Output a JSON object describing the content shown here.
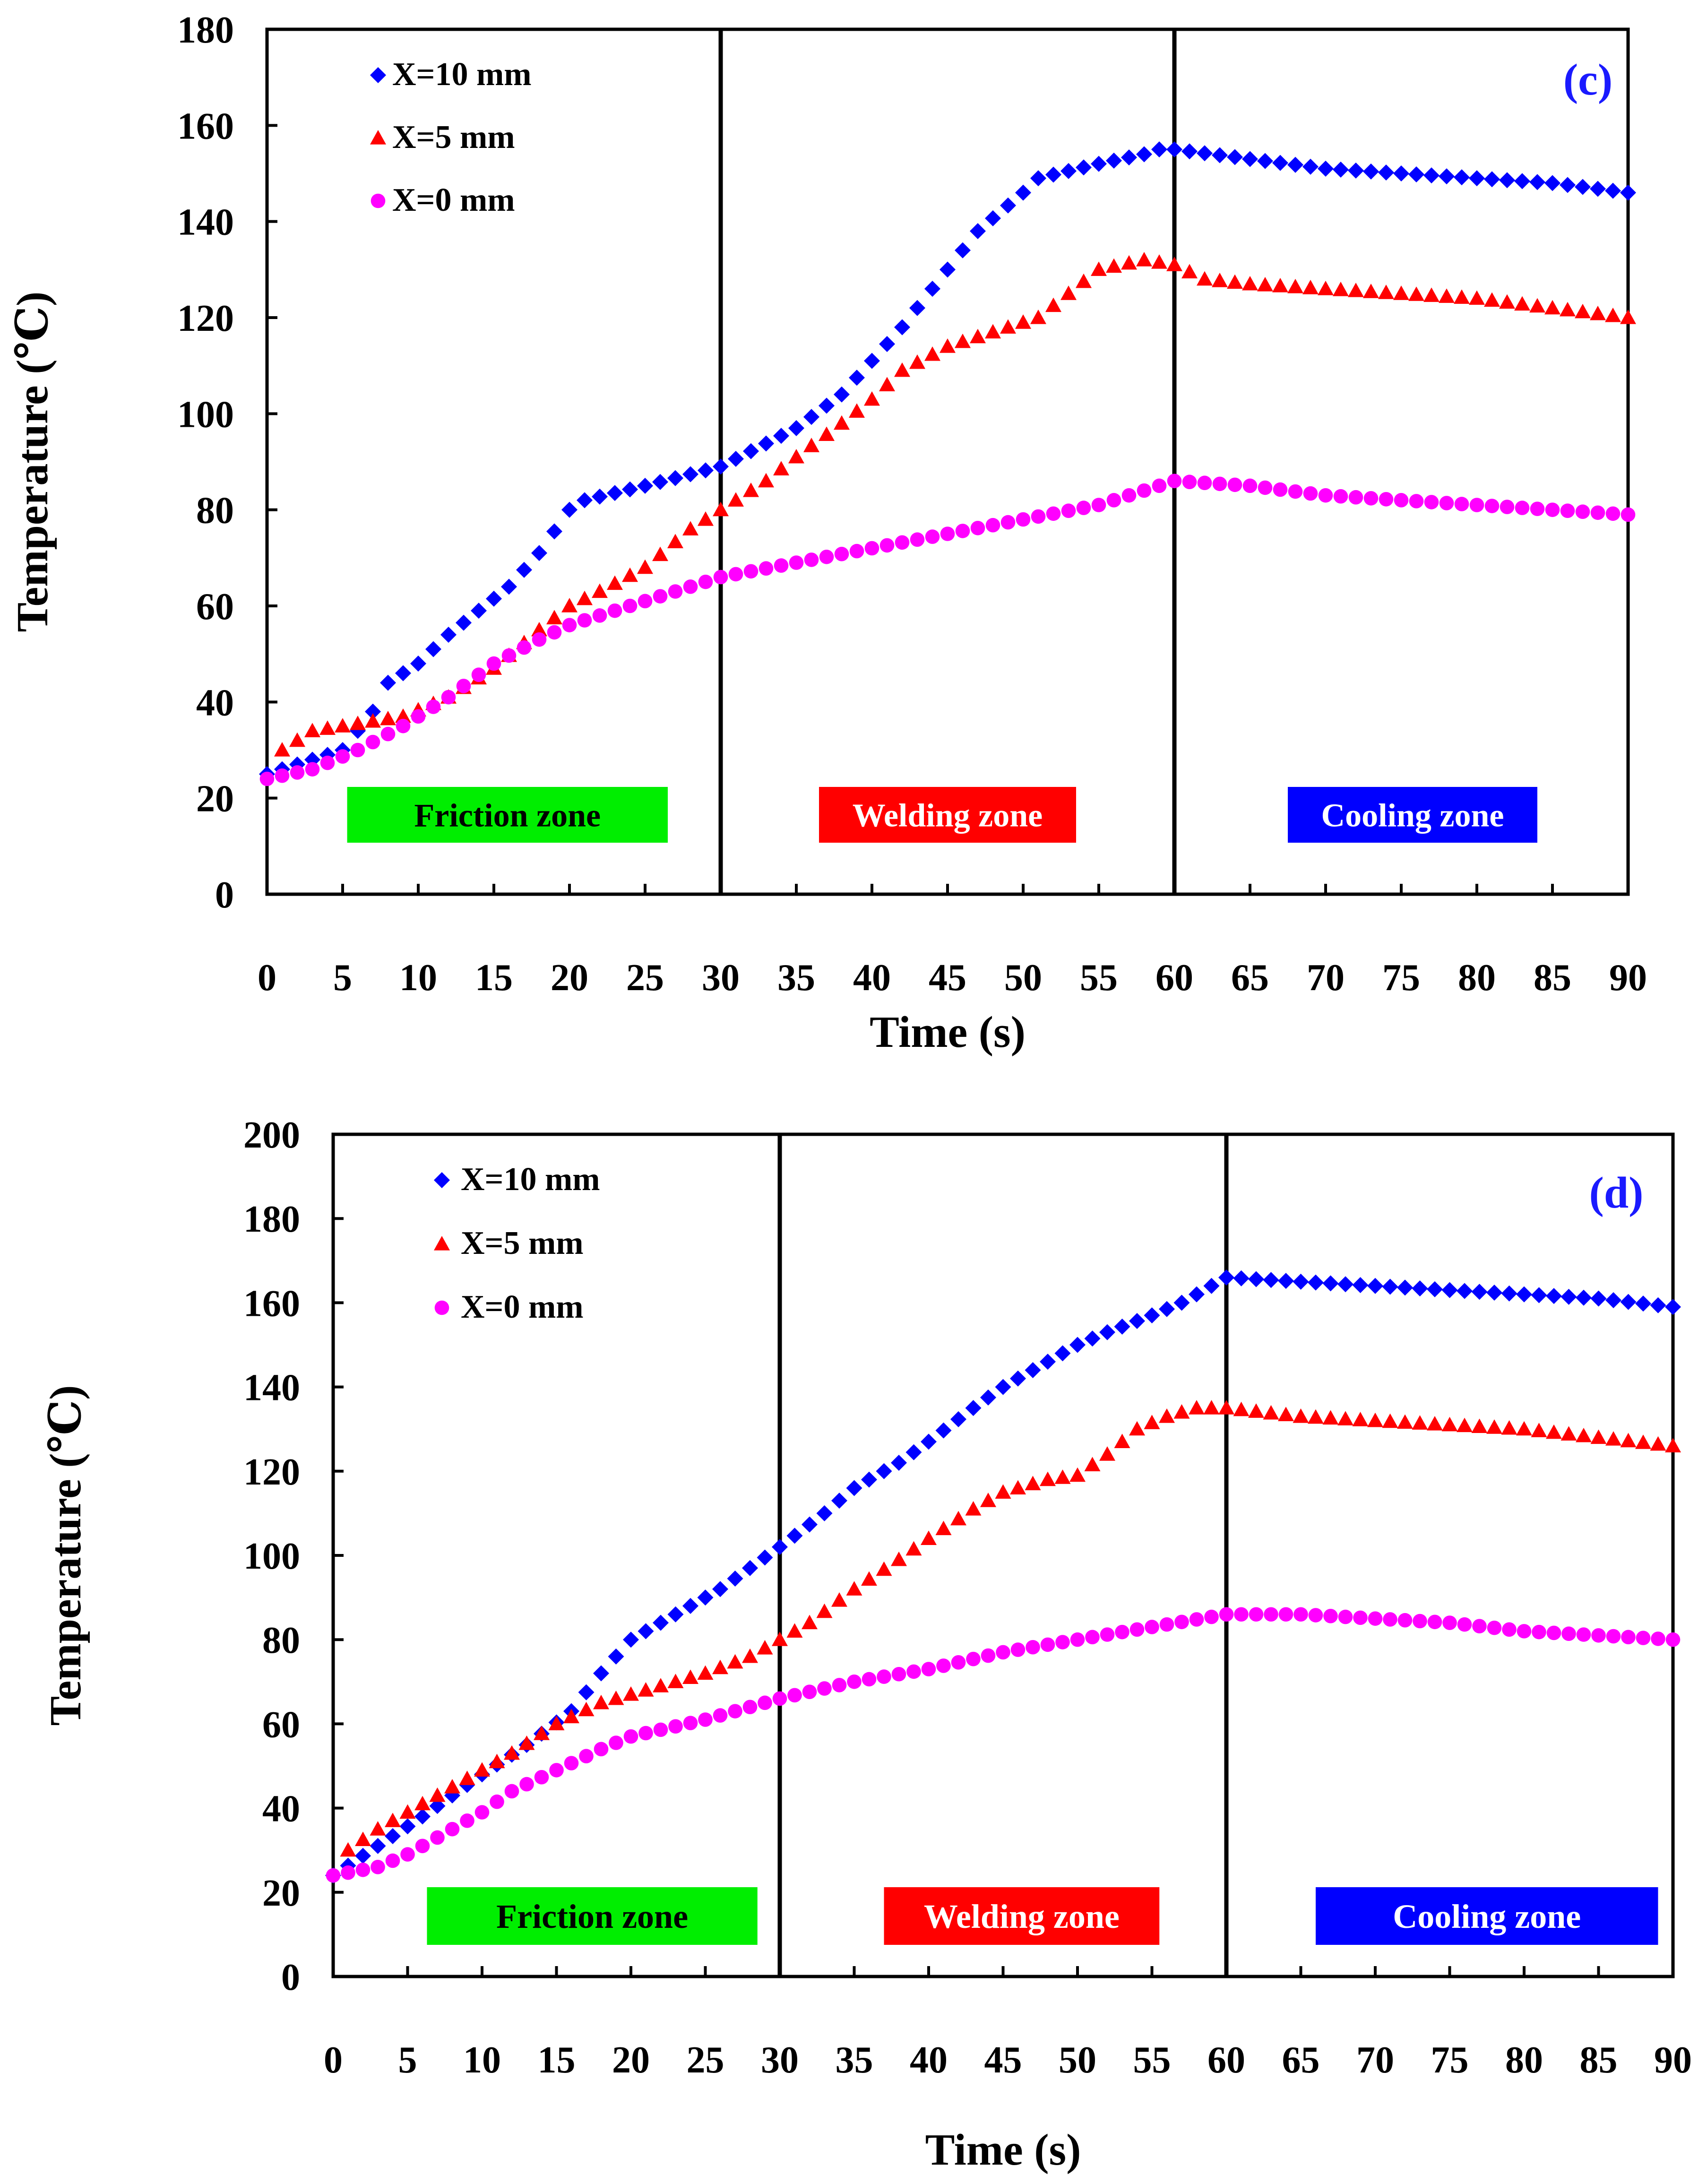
{
  "chart_data": [
    {
      "type": "scatter",
      "panel_label": "(c)",
      "xlabel": "Time (s)",
      "ylabel": "Temperature (℃)",
      "xlim": [
        0,
        90
      ],
      "ylim": [
        0,
        180
      ],
      "xticks": [
        0,
        5,
        10,
        15,
        20,
        25,
        30,
        35,
        40,
        45,
        50,
        55,
        60,
        65,
        70,
        75,
        80,
        85,
        90
      ],
      "yticks": [
        0,
        20,
        40,
        60,
        80,
        100,
        120,
        140,
        160,
        180
      ],
      "phase_boundaries": [
        30,
        60
      ],
      "zones": [
        {
          "label": "Friction zone",
          "color": "#00ee00",
          "text_color": "#000000",
          "x_from": 5.3,
          "x_to": 26.5
        },
        {
          "label": "Welding zone",
          "color": "#ff0000",
          "text_color": "#ffffff",
          "x_from": 36.5,
          "x_to": 53.5
        },
        {
          "label": "Cooling zone",
          "color": "#0000ff",
          "text_color": "#ffffff",
          "x_from": 67.5,
          "x_to": 84.0
        }
      ],
      "series": [
        {
          "name": "X=10 mm",
          "marker": "diamond",
          "color": "#0000ff",
          "points": [
            [
              0,
              25
            ],
            [
              5,
              30
            ],
            [
              7,
              38
            ],
            [
              8,
              44
            ],
            [
              10,
              48
            ],
            [
              12,
              54
            ],
            [
              14,
              59
            ],
            [
              16,
              64
            ],
            [
              18,
              71
            ],
            [
              20,
              80
            ],
            [
              21,
              82
            ],
            [
              25,
              85
            ],
            [
              30,
              89
            ],
            [
              35,
              97
            ],
            [
              38,
              104
            ],
            [
              40,
              111
            ],
            [
              42,
              118
            ],
            [
              45,
              130
            ],
            [
              47,
              138
            ],
            [
              50,
              146
            ],
            [
              51,
              149
            ],
            [
              55,
              152
            ],
            [
              58,
              154
            ],
            [
              59,
              155
            ],
            [
              60,
              155
            ],
            [
              65,
              153
            ],
            [
              70,
              151
            ],
            [
              75,
              150
            ],
            [
              80,
              149
            ],
            [
              85,
              148
            ],
            [
              90,
              146
            ]
          ]
        },
        {
          "name": "X=5 mm",
          "marker": "triangle",
          "color": "#ff0000",
          "points": [
            [
              1,
              30
            ],
            [
              3,
              34
            ],
            [
              5,
              35
            ],
            [
              9,
              37
            ],
            [
              12,
              41
            ],
            [
              15,
              47
            ],
            [
              18,
              55
            ],
            [
              20,
              60
            ],
            [
              22,
              63
            ],
            [
              25,
              68
            ],
            [
              28,
              76
            ],
            [
              30,
              80
            ],
            [
              33,
              86
            ],
            [
              35,
              91
            ],
            [
              38,
              98
            ],
            [
              40,
              103
            ],
            [
              42,
              109
            ],
            [
              45,
              114
            ],
            [
              48,
              117
            ],
            [
              51,
              120
            ],
            [
              53,
              125
            ],
            [
              55,
              130
            ],
            [
              58,
              132
            ],
            [
              60,
              131
            ],
            [
              62,
              128
            ],
            [
              65,
              127
            ],
            [
              70,
              126
            ],
            [
              75,
              125
            ],
            [
              80,
              124
            ],
            [
              85,
              122
            ],
            [
              90,
              120
            ]
          ]
        },
        {
          "name": "X=0 mm",
          "marker": "circle",
          "color": "#ff00ff",
          "points": [
            [
              0,
              24
            ],
            [
              3,
              26
            ],
            [
              6,
              30
            ],
            [
              9,
              35
            ],
            [
              12,
              41
            ],
            [
              15,
              48
            ],
            [
              18,
              53
            ],
            [
              20,
              56
            ],
            [
              25,
              61
            ],
            [
              30,
              66
            ],
            [
              35,
              69
            ],
            [
              40,
              72
            ],
            [
              45,
              75
            ],
            [
              50,
              78
            ],
            [
              55,
              81
            ],
            [
              58,
              84
            ],
            [
              60,
              86
            ],
            [
              65,
              85
            ],
            [
              70,
              83
            ],
            [
              75,
              82
            ],
            [
              80,
              81
            ],
            [
              85,
              80
            ],
            [
              90,
              79
            ]
          ]
        }
      ]
    },
    {
      "type": "scatter",
      "panel_label": "(d)",
      "xlabel": "Time (s)",
      "ylabel": "Temperature (℃)",
      "xlim": [
        0,
        90
      ],
      "ylim": [
        0,
        200
      ],
      "xticks": [
        0,
        5,
        10,
        15,
        20,
        25,
        30,
        35,
        40,
        45,
        50,
        55,
        60,
        65,
        70,
        75,
        80,
        85,
        90
      ],
      "yticks": [
        0,
        20,
        40,
        60,
        80,
        100,
        120,
        140,
        160,
        180,
        200
      ],
      "phase_boundaries": [
        30,
        60
      ],
      "zones": [
        {
          "label": "Friction zone",
          "color": "#00ee00",
          "text_color": "#000000",
          "x_from": 6.3,
          "x_to": 28.5
        },
        {
          "label": "Welding zone",
          "color": "#ff0000",
          "text_color": "#ffffff",
          "x_from": 37.0,
          "x_to": 55.5
        },
        {
          "label": "Cooling zone",
          "color": "#0000ff",
          "text_color": "#ffffff",
          "x_from": 66.0,
          "x_to": 89.0
        }
      ],
      "series": [
        {
          "name": "X=10 mm",
          "marker": "diamond",
          "color": "#0000ff",
          "points": [
            [
              0,
              24
            ],
            [
              3,
              31
            ],
            [
              6,
              38
            ],
            [
              10,
              48
            ],
            [
              13,
              55
            ],
            [
              16,
              63
            ],
            [
              18,
              72
            ],
            [
              20,
              80
            ],
            [
              23,
              86
            ],
            [
              26,
              92
            ],
            [
              28,
              97
            ],
            [
              30,
              102
            ],
            [
              33,
              110
            ],
            [
              35,
              116
            ],
            [
              38,
              122
            ],
            [
              40,
              127
            ],
            [
              43,
              135
            ],
            [
              45,
              140
            ],
            [
              48,
              146
            ],
            [
              50,
              150
            ],
            [
              52,
              153
            ],
            [
              55,
              157
            ],
            [
              57,
              160
            ],
            [
              60,
              166
            ],
            [
              65,
              165
            ],
            [
              70,
              164
            ],
            [
              75,
              163
            ],
            [
              80,
              162
            ],
            [
              85,
              161
            ],
            [
              90,
              159
            ]
          ]
        },
        {
          "name": "X=5 mm",
          "marker": "triangle",
          "color": "#ff0000",
          "points": [
            [
              1,
              30
            ],
            [
              3,
              35
            ],
            [
              5,
              39
            ],
            [
              8,
              45
            ],
            [
              10,
              49
            ],
            [
              12,
              53
            ],
            [
              15,
              60
            ],
            [
              18,
              65
            ],
            [
              20,
              67
            ],
            [
              23,
              70
            ],
            [
              25,
              72
            ],
            [
              28,
              76
            ],
            [
              30,
              80
            ],
            [
              32,
              84
            ],
            [
              35,
              92
            ],
            [
              38,
              99
            ],
            [
              40,
              104
            ],
            [
              43,
              111
            ],
            [
              45,
              115
            ],
            [
              48,
              118
            ],
            [
              50,
              119
            ],
            [
              52,
              124
            ],
            [
              54,
              130
            ],
            [
              56,
              133
            ],
            [
              58,
              135
            ],
            [
              60,
              135
            ],
            [
              65,
              133
            ],
            [
              70,
              132
            ],
            [
              75,
              131
            ],
            [
              80,
              130
            ],
            [
              85,
              128
            ],
            [
              90,
              126
            ]
          ]
        },
        {
          "name": "X=0 mm",
          "marker": "circle",
          "color": "#ff00ff",
          "points": [
            [
              0,
              24
            ],
            [
              3,
              26
            ],
            [
              5,
              29
            ],
            [
              8,
              35
            ],
            [
              10,
              39
            ],
            [
              12,
              44
            ],
            [
              15,
              49
            ],
            [
              18,
              54
            ],
            [
              20,
              57
            ],
            [
              25,
              61
            ],
            [
              30,
              66
            ],
            [
              35,
              70
            ],
            [
              40,
              73
            ],
            [
              45,
              77
            ],
            [
              50,
              80
            ],
            [
              55,
              83
            ],
            [
              60,
              86
            ],
            [
              65,
              86
            ],
            [
              70,
              85
            ],
            [
              75,
              84
            ],
            [
              80,
              82
            ],
            [
              85,
              81
            ],
            [
              90,
              80
            ]
          ]
        }
      ]
    }
  ]
}
